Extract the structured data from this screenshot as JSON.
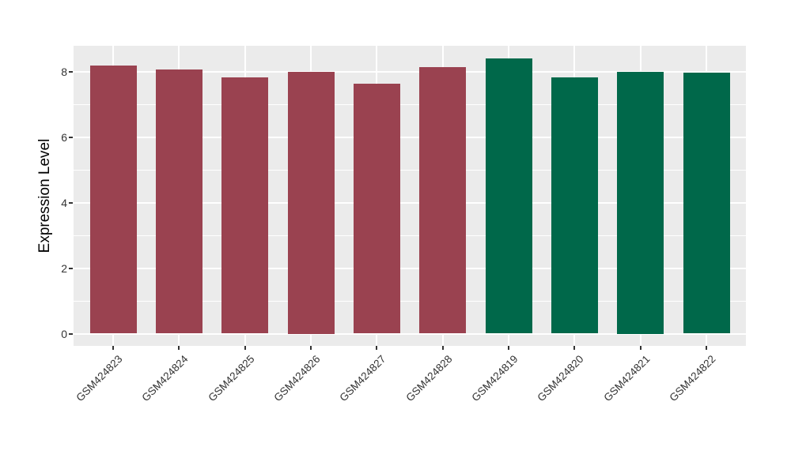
{
  "chart_data": {
    "type": "bar",
    "title": "",
    "xlabel": "",
    "ylabel": "Expression Level",
    "categories": [
      "GSM424823",
      "GSM424824",
      "GSM424825",
      "GSM424826",
      "GSM424827",
      "GSM424828",
      "GSM424819",
      "GSM424820",
      "GSM424821",
      "GSM424822"
    ],
    "values": [
      8.18,
      8.07,
      7.82,
      8.0,
      7.62,
      8.13,
      8.4,
      7.82,
      8.0,
      7.97
    ],
    "bar_colors": [
      "#9A4250",
      "#9A4250",
      "#9A4250",
      "#9A4250",
      "#9A4250",
      "#9A4250",
      "#00684A",
      "#00684A",
      "#00684A",
      "#00684A"
    ],
    "series_groups": [
      {
        "name": "GSM424823-GSM424828",
        "color": "#9A4250",
        "count": 6
      },
      {
        "name": "GSM424819-GSM424822",
        "color": "#00684A",
        "count": 4
      }
    ],
    "ylim": [
      0,
      8.78
    ],
    "yticks": [
      0,
      2,
      4,
      6,
      8
    ],
    "yticks_minor": [
      1,
      3,
      5,
      7
    ],
    "grid": "on",
    "legend_position": "none",
    "x_tick_rotation_deg": 45,
    "colors": {
      "figure_background": "#FFFFFF",
      "panel_background": "#EBEBEB",
      "grid": "#FFFFFF",
      "axis_text": "#333333",
      "axis_title": "#000000"
    }
  }
}
